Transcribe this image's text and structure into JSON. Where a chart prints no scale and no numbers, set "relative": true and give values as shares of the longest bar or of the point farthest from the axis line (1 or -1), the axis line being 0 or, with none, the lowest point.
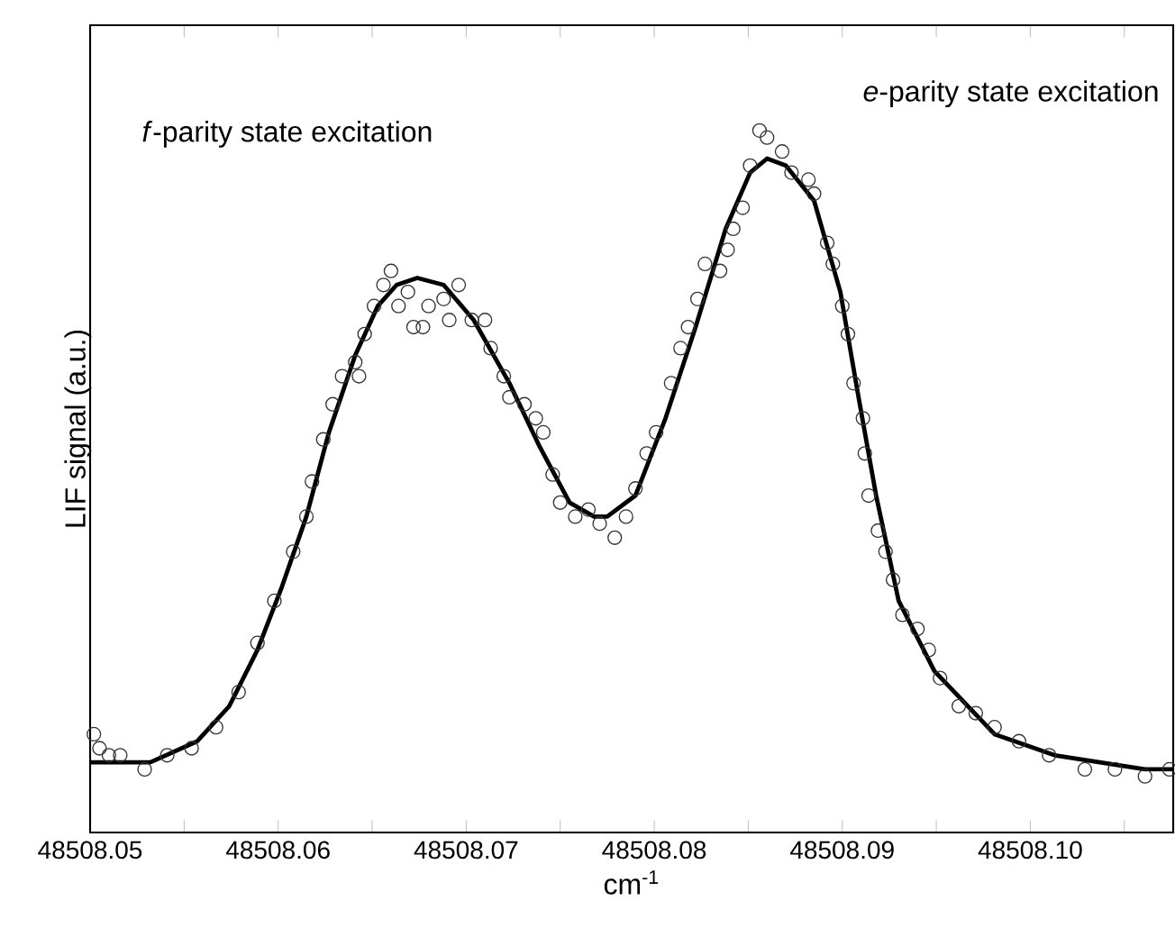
{
  "chart_data": {
    "type": "scatter",
    "relative": true,
    "xlabel": "cm$^{-1}$",
    "ylabel": "LIF signal (a.u.)",
    "annotations": [
      "*f*-parity state excitation",
      "*e*-parity state excitation"
    ],
    "xlim": [
      48508.05,
      48508.1076
    ],
    "xticks": [
      48508.05,
      {
        "value": 48508.055,
        "label": null
      },
      48508.06,
      {
        "value": 48508.065,
        "label": null
      },
      48508.07,
      {
        "value": 48508.075,
        "label": null
      },
      48508.08,
      {
        "value": 48508.085,
        "label": null
      },
      48508.09,
      {
        "value": 48508.095,
        "label": null
      },
      {
        "value": 48508.1,
        "label": "48508.10"
      },
      {
        "value": 48508.105,
        "label": null
      }
    ],
    "series": [
      {
        "marker": "circle",
        "color": "#333333",
        "x": [
          48508.0502,
          48508.0505,
          48508.051,
          48508.0516,
          48508.0529,
          48508.0541,
          48508.0554,
          48508.0567,
          48508.0579,
          48508.0589,
          48508.0598,
          48508.0608,
          48508.0615,
          48508.0618,
          48508.0624,
          48508.0629,
          48508.0634,
          48508.0641,
          48508.0643,
          48508.0646,
          48508.0651,
          48508.0656,
          48508.066,
          48508.0664,
          48508.0669,
          48508.0672,
          48508.0677,
          48508.068,
          48508.0688,
          48508.0691,
          48508.0696,
          48508.0703,
          48508.071,
          48508.0713,
          48508.072,
          48508.0723,
          48508.0731,
          48508.0737,
          48508.0741,
          48508.0746,
          48508.075,
          48508.0758,
          48508.0765,
          48508.0771,
          48508.0779,
          48508.0785,
          48508.079,
          48508.0796,
          48508.0801,
          48508.0809,
          48508.0814,
          48508.0818,
          48508.0823,
          48508.0827,
          48508.0835,
          48508.0839,
          48508.0842,
          48508.0847,
          48508.0851,
          48508.0856,
          48508.086,
          48508.0868,
          48508.0873,
          48508.0882,
          48508.0885,
          48508.0892,
          48508.0895,
          48508.09,
          48508.0903,
          48508.0906,
          48508.0911,
          48508.0912,
          48508.0914,
          48508.0919,
          48508.0923,
          48508.0927,
          48508.0932,
          48508.094,
          48508.0946,
          48508.0952,
          48508.0962,
          48508.0971,
          48508.0981,
          48508.0994,
          48508.101,
          48508.1029,
          48508.1045,
          48508.1061,
          48508.1074
        ],
        "values": [
          0.14,
          0.12,
          0.11,
          0.11,
          0.09,
          0.11,
          0.12,
          0.15,
          0.2,
          0.27,
          0.33,
          0.4,
          0.45,
          0.5,
          0.56,
          0.61,
          0.65,
          0.67,
          0.65,
          0.71,
          0.75,
          0.78,
          0.8,
          0.75,
          0.77,
          0.72,
          0.72,
          0.75,
          0.76,
          0.73,
          0.78,
          0.73,
          0.73,
          0.69,
          0.65,
          0.62,
          0.61,
          0.59,
          0.57,
          0.51,
          0.47,
          0.45,
          0.46,
          0.44,
          0.42,
          0.45,
          0.49,
          0.54,
          0.57,
          0.64,
          0.69,
          0.72,
          0.76,
          0.81,
          0.8,
          0.83,
          0.86,
          0.89,
          0.95,
          1.0,
          0.99,
          0.97,
          0.94,
          0.93,
          0.91,
          0.84,
          0.81,
          0.75,
          0.71,
          0.64,
          0.59,
          0.54,
          0.48,
          0.43,
          0.4,
          0.36,
          0.31,
          0.29,
          0.26,
          0.22,
          0.18,
          0.17,
          0.15,
          0.13,
          0.11,
          0.09,
          0.09,
          0.08,
          0.09
        ]
      },
      {
        "type": "line",
        "marker": "none",
        "line_style": "solid",
        "color": "#000000",
        "x": [
          48508.05,
          48508.0532,
          48508.0557,
          48508.0574,
          48508.0589,
          48508.0602,
          48508.0615,
          48508.0627,
          48508.0641,
          48508.0653,
          48508.0663,
          48508.0674,
          48508.0688,
          48508.0704,
          48508.0723,
          48508.0739,
          48508.0755,
          48508.0768,
          48508.0775,
          48508.079,
          48508.0806,
          48508.0822,
          48508.0838,
          48508.0851,
          48508.086,
          48508.087,
          48508.0885,
          48508.0899,
          48508.0908,
          48508.0918,
          48508.093,
          48508.0949,
          48508.0981,
          48508.1013,
          48508.1061,
          48508.1076
        ],
        "values": [
          0.1,
          0.1,
          0.13,
          0.18,
          0.26,
          0.35,
          0.45,
          0.57,
          0.68,
          0.75,
          0.78,
          0.79,
          0.78,
          0.73,
          0.64,
          0.55,
          0.47,
          0.45,
          0.45,
          0.48,
          0.59,
          0.72,
          0.86,
          0.94,
          0.96,
          0.95,
          0.9,
          0.77,
          0.63,
          0.48,
          0.33,
          0.23,
          0.14,
          0.11,
          0.09,
          0.09
        ]
      }
    ]
  }
}
